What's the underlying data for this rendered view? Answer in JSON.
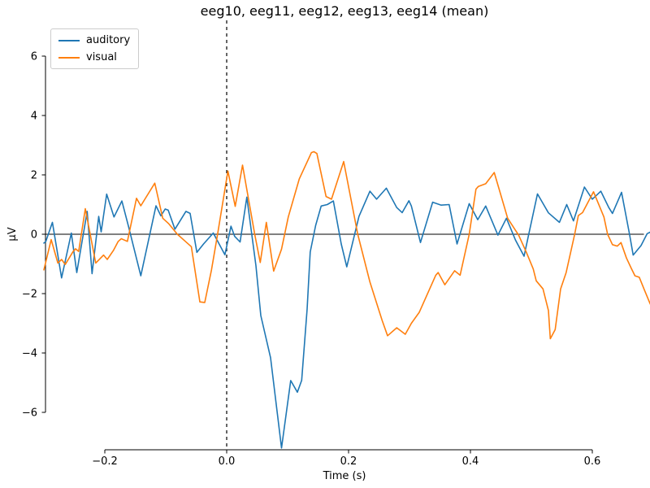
{
  "chart_data": {
    "type": "line",
    "title": "eeg10, eeg11, eeg12, eeg13, eeg14 (mean)",
    "xlabel": "Time (s)",
    "ylabel": "µV",
    "xlim": [
      -0.3,
      0.7
    ],
    "ylim": [
      -7.25,
      7.2
    ],
    "grid": false,
    "legend_position": "upper left",
    "x_ticks": [
      {
        "value": -0.2,
        "label": "−0.2"
      },
      {
        "value": 0.0,
        "label": "0.0"
      },
      {
        "value": 0.2,
        "label": "0.2"
      },
      {
        "value": 0.4,
        "label": "0.4"
      },
      {
        "value": 0.6,
        "label": "0.6"
      }
    ],
    "y_ticks": [
      {
        "value": 6,
        "label": "6"
      },
      {
        "value": 4,
        "label": "4"
      },
      {
        "value": 2,
        "label": "2"
      },
      {
        "value": 0,
        "label": "0"
      },
      {
        "value": -2,
        "label": "−2"
      },
      {
        "value": -4,
        "label": "−4"
      },
      {
        "value": -6,
        "label": "−6"
      }
    ],
    "annotations": {
      "vline_x": 0.0,
      "vline_style": "dashed",
      "vline_color": "#000000",
      "hline_y": 0.0,
      "hline_color": "#000000"
    },
    "axis_color": "#000000",
    "series": [
      {
        "name": "auditory",
        "color": "#1f77b4",
        "points": [
          [
            -0.3,
            -0.3
          ],
          [
            -0.297,
            -0.25
          ],
          [
            -0.286,
            0.4
          ],
          [
            -0.271,
            -1.47
          ],
          [
            -0.255,
            0.04
          ],
          [
            -0.246,
            -1.29
          ],
          [
            -0.229,
            0.77
          ],
          [
            -0.221,
            -1.33
          ],
          [
            -0.21,
            0.6
          ],
          [
            -0.206,
            0.08
          ],
          [
            -0.197,
            1.35
          ],
          [
            -0.185,
            0.58
          ],
          [
            -0.172,
            1.12
          ],
          [
            -0.161,
            0.25
          ],
          [
            -0.141,
            -1.4
          ],
          [
            -0.116,
            0.96
          ],
          [
            -0.108,
            0.62
          ],
          [
            -0.101,
            0.85
          ],
          [
            -0.096,
            0.81
          ],
          [
            -0.085,
            0.17
          ],
          [
            -0.067,
            0.77
          ],
          [
            -0.06,
            0.7
          ],
          [
            -0.049,
            -0.61
          ],
          [
            -0.038,
            -0.33
          ],
          [
            -0.022,
            0.04
          ],
          [
            -0.016,
            -0.19
          ],
          [
            -0.003,
            -0.69
          ],
          [
            0.007,
            0.27
          ],
          [
            0.013,
            -0.07
          ],
          [
            0.022,
            -0.26
          ],
          [
            0.033,
            1.25
          ],
          [
            0.048,
            -1.06
          ],
          [
            0.056,
            -2.74
          ],
          [
            0.072,
            -4.16
          ],
          [
            0.09,
            -7.2
          ],
          [
            0.105,
            -4.93
          ],
          [
            0.116,
            -5.32
          ],
          [
            0.123,
            -4.92
          ],
          [
            0.132,
            -2.52
          ],
          [
            0.137,
            -0.6
          ],
          [
            0.146,
            0.3
          ],
          [
            0.155,
            0.95
          ],
          [
            0.165,
            1.0
          ],
          [
            0.175,
            1.12
          ],
          [
            0.188,
            -0.33
          ],
          [
            0.197,
            -1.1
          ],
          [
            0.217,
            0.6
          ],
          [
            0.235,
            1.45
          ],
          [
            0.246,
            1.18
          ],
          [
            0.262,
            1.55
          ],
          [
            0.279,
            0.9
          ],
          [
            0.288,
            0.73
          ],
          [
            0.299,
            1.13
          ],
          [
            0.303,
            0.95
          ],
          [
            0.318,
            -0.28
          ],
          [
            0.338,
            1.08
          ],
          [
            0.352,
            0.98
          ],
          [
            0.365,
            1.0
          ],
          [
            0.378,
            -0.33
          ],
          [
            0.398,
            1.03
          ],
          [
            0.412,
            0.49
          ],
          [
            0.425,
            0.95
          ],
          [
            0.445,
            -0.03
          ],
          [
            0.459,
            0.54
          ],
          [
            0.474,
            -0.2
          ],
          [
            0.488,
            -0.74
          ],
          [
            0.495,
            -0.06
          ],
          [
            0.51,
            1.36
          ],
          [
            0.528,
            0.72
          ],
          [
            0.546,
            0.4
          ],
          [
            0.558,
            1.0
          ],
          [
            0.569,
            0.45
          ],
          [
            0.587,
            1.59
          ],
          [
            0.6,
            1.18
          ],
          [
            0.614,
            1.45
          ],
          [
            0.627,
            0.9
          ],
          [
            0.633,
            0.7
          ],
          [
            0.648,
            1.41
          ],
          [
            0.661,
            0.0
          ],
          [
            0.667,
            -0.7
          ],
          [
            0.68,
            -0.38
          ],
          [
            0.69,
            0.02
          ],
          [
            0.695,
            0.07
          ]
        ]
      },
      {
        "name": "visual",
        "color": "#ff7f0e",
        "points": [
          [
            -0.3,
            -1.2
          ],
          [
            -0.288,
            -0.18
          ],
          [
            -0.277,
            -0.97
          ],
          [
            -0.271,
            -0.85
          ],
          [
            -0.265,
            -1.02
          ],
          [
            -0.252,
            -0.58
          ],
          [
            -0.248,
            -0.49
          ],
          [
            -0.243,
            -0.58
          ],
          [
            -0.232,
            0.86
          ],
          [
            -0.215,
            -0.97
          ],
          [
            -0.202,
            -0.7
          ],
          [
            -0.196,
            -0.85
          ],
          [
            -0.186,
            -0.55
          ],
          [
            -0.178,
            -0.24
          ],
          [
            -0.173,
            -0.15
          ],
          [
            -0.163,
            -0.24
          ],
          [
            -0.148,
            1.21
          ],
          [
            -0.141,
            0.96
          ],
          [
            -0.118,
            1.72
          ],
          [
            -0.105,
            0.54
          ],
          [
            -0.095,
            0.35
          ],
          [
            -0.081,
            0.0
          ],
          [
            -0.07,
            -0.2
          ],
          [
            -0.058,
            -0.42
          ],
          [
            -0.044,
            -2.28
          ],
          [
            -0.036,
            -2.3
          ],
          [
            -0.025,
            -1.2
          ],
          [
            -0.015,
            0.0
          ],
          [
            0.002,
            2.13
          ],
          [
            0.014,
            0.94
          ],
          [
            0.026,
            2.33
          ],
          [
            0.046,
            0.0
          ],
          [
            0.055,
            -0.95
          ],
          [
            0.065,
            0.4
          ],
          [
            0.077,
            -1.24
          ],
          [
            0.09,
            -0.5
          ],
          [
            0.101,
            0.58
          ],
          [
            0.119,
            1.86
          ],
          [
            0.139,
            2.75
          ],
          [
            0.143,
            2.78
          ],
          [
            0.148,
            2.72
          ],
          [
            0.163,
            1.27
          ],
          [
            0.172,
            1.18
          ],
          [
            0.192,
            2.45
          ],
          [
            0.215,
            0.0
          ],
          [
            0.235,
            -1.61
          ],
          [
            0.255,
            -2.9
          ],
          [
            0.264,
            -3.42
          ],
          [
            0.279,
            -3.15
          ],
          [
            0.293,
            -3.37
          ],
          [
            0.303,
            -3.0
          ],
          [
            0.316,
            -2.63
          ],
          [
            0.343,
            -1.38
          ],
          [
            0.347,
            -1.29
          ],
          [
            0.358,
            -1.7
          ],
          [
            0.374,
            -1.23
          ],
          [
            0.383,
            -1.38
          ],
          [
            0.398,
            0.0
          ],
          [
            0.409,
            1.52
          ],
          [
            0.413,
            1.61
          ],
          [
            0.425,
            1.7
          ],
          [
            0.439,
            2.08
          ],
          [
            0.461,
            0.54
          ],
          [
            0.479,
            -0.03
          ],
          [
            0.492,
            -0.62
          ],
          [
            0.503,
            -1.17
          ],
          [
            0.508,
            -1.57
          ],
          [
            0.519,
            -1.84
          ],
          [
            0.528,
            -2.57
          ],
          [
            0.531,
            -3.52
          ],
          [
            0.539,
            -3.21
          ],
          [
            0.548,
            -1.84
          ],
          [
            0.557,
            -1.29
          ],
          [
            0.571,
            0.0
          ],
          [
            0.577,
            0.63
          ],
          [
            0.584,
            0.73
          ],
          [
            0.602,
            1.43
          ],
          [
            0.619,
            0.58
          ],
          [
            0.625,
            0.0
          ],
          [
            0.633,
            -0.35
          ],
          [
            0.641,
            -0.4
          ],
          [
            0.647,
            -0.28
          ],
          [
            0.656,
            -0.8
          ],
          [
            0.664,
            -1.15
          ],
          [
            0.67,
            -1.4
          ],
          [
            0.677,
            -1.45
          ],
          [
            0.686,
            -1.9
          ],
          [
            0.695,
            -2.35
          ]
        ]
      }
    ]
  }
}
